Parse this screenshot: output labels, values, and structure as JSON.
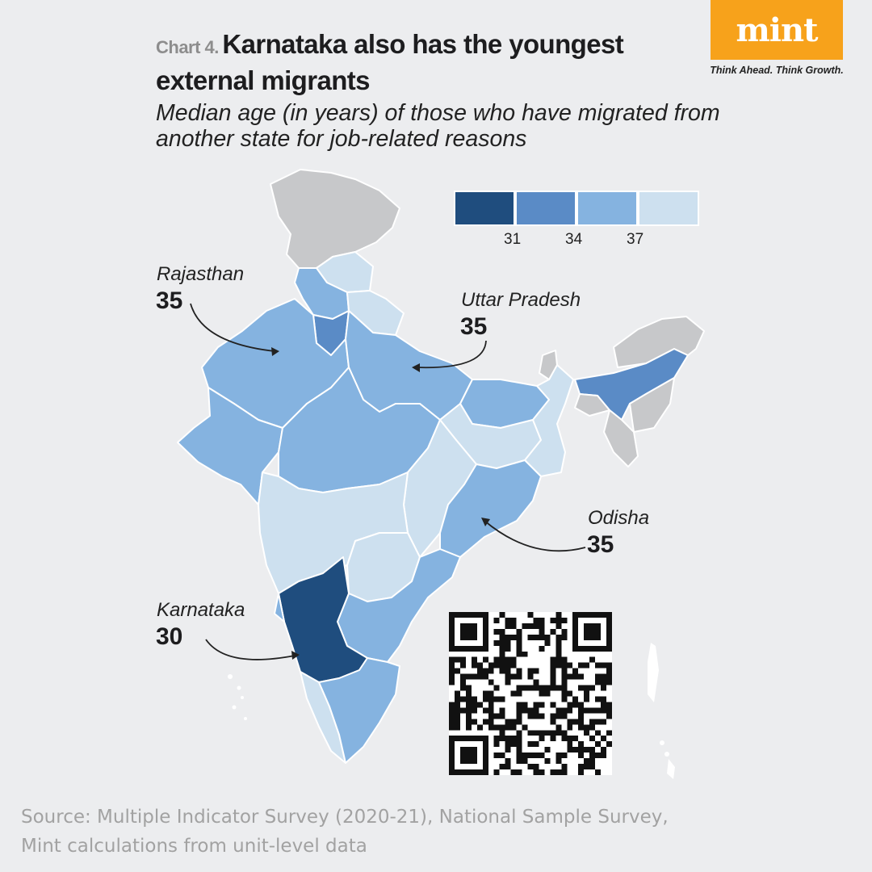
{
  "brand": {
    "name": "mint",
    "tagline": "Think Ahead. Think Growth."
  },
  "header": {
    "chart_label": "Chart 4.",
    "title": "Karnataka also has the youngest external migrants",
    "subtitle": "Median age (in years) of those who have migrated from another state for job-related reasons"
  },
  "legend": {
    "colors": [
      "#1f4d7e",
      "#5a8bc6",
      "#85b3e0",
      "#cde0ef"
    ],
    "ticks": [
      "31",
      "34",
      "37"
    ]
  },
  "callouts": {
    "rajasthan": {
      "name": "Rajasthan",
      "value": "35"
    },
    "uttar_pradesh": {
      "name": "Uttar Pradesh",
      "value": "35"
    },
    "odisha": {
      "name": "Odisha",
      "value": "35"
    },
    "karnataka": {
      "name": "Karnataka",
      "value": "30"
    }
  },
  "colors": {
    "no_data": "#c7c8ca",
    "bin1": "#1f4d7e",
    "bin2": "#5a8bc6",
    "bin3": "#85b3e0",
    "bin4": "#cde0ef"
  },
  "source": {
    "line1": "Source: Multiple Indicator Survey (2020-21), National Sample Survey,",
    "line2": "Mint calculations from unit-level data"
  }
}
